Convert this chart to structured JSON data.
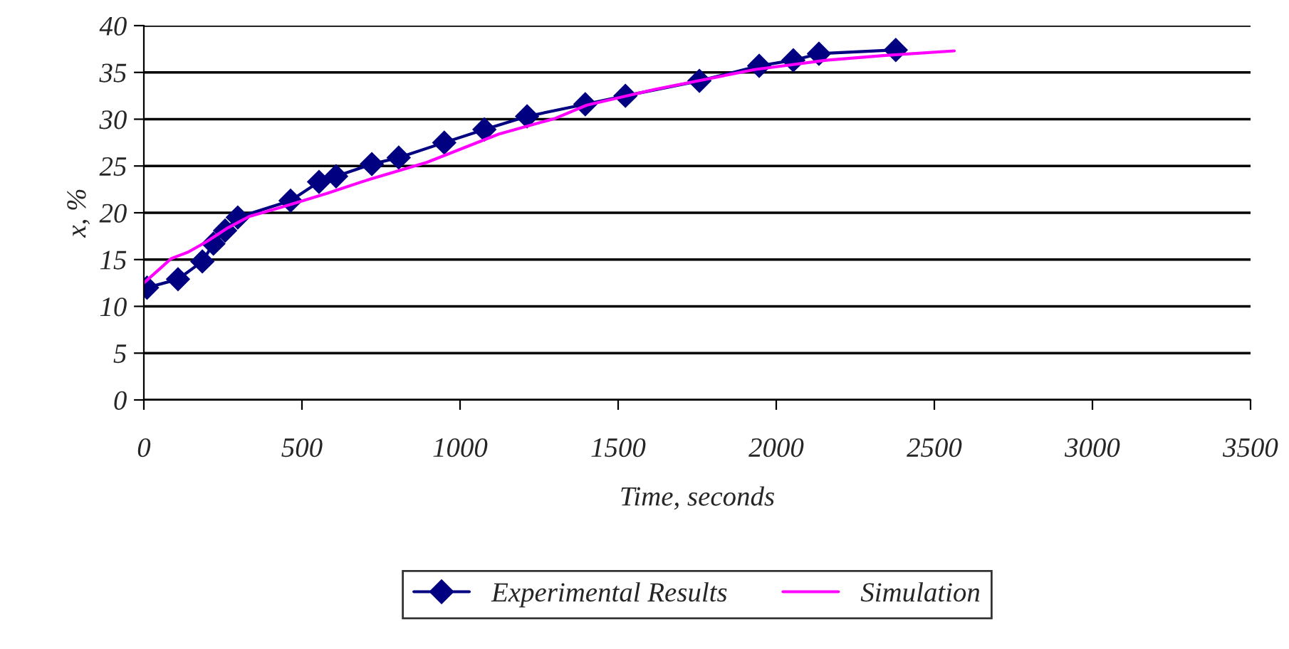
{
  "chart_data": {
    "type": "line",
    "xlabel": "Time, seconds",
    "ylabel": "x, %",
    "xlim": [
      0,
      3500
    ],
    "xticks": [
      0,
      500,
      1000,
      1500,
      2000,
      2500,
      3000,
      3500
    ],
    "ylim": [
      0,
      40
    ],
    "yticks": [
      0,
      5,
      10,
      15,
      20,
      25,
      30,
      35,
      40
    ],
    "grid": "y",
    "legend": "bottom",
    "series": [
      {
        "name": "Experimental Results",
        "color": "#000080",
        "marker": "diamond",
        "x": [
          10,
          108,
          185,
          220,
          257,
          297,
          464,
          554,
          608,
          721,
          806,
          950,
          1077,
          1212,
          1396,
          1523,
          1757,
          1946,
          2054,
          2135,
          2378
        ],
        "values": [
          12.0,
          12.9,
          14.8,
          16.7,
          18.1,
          19.5,
          21.3,
          23.3,
          23.9,
          25.2,
          25.9,
          27.5,
          28.9,
          30.3,
          31.6,
          32.5,
          34.1,
          35.7,
          36.3,
          37.0,
          37.4
        ]
      },
      {
        "name": "Simulation",
        "color": "#ff00ff",
        "marker": "none",
        "x": [
          0,
          50,
          86,
          140,
          198,
          266,
          333,
          446,
          581,
          716,
          896,
          1122,
          1302,
          1401,
          1617,
          1932,
          2158,
          2338,
          2563
        ],
        "values": [
          12.5,
          14.0,
          15.1,
          15.8,
          16.9,
          18.4,
          19.6,
          20.7,
          22.1,
          23.6,
          25.4,
          28.4,
          30.1,
          31.5,
          33.2,
          35.3,
          36.3,
          36.8,
          37.3
        ]
      }
    ]
  }
}
